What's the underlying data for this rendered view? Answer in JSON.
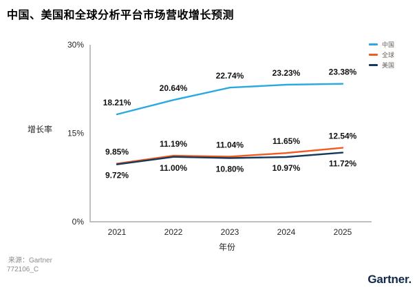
{
  "title": "中国、美国和全球分析平台市场营收增长预测",
  "chart_data": {
    "type": "line",
    "x": [
      "2021",
      "2022",
      "2023",
      "2024",
      "2025"
    ],
    "series": [
      {
        "name": "中国",
        "color": "#29A9E0",
        "values": [
          18.21,
          20.64,
          22.74,
          23.23,
          23.38
        ],
        "label_position": "above"
      },
      {
        "name": "全球",
        "color": "#F4591D",
        "values": [
          9.85,
          11.19,
          11.04,
          11.65,
          12.54
        ],
        "label_position": "above"
      },
      {
        "name": "美国",
        "color": "#15395B",
        "values": [
          9.72,
          11.0,
          10.8,
          10.97,
          11.72
        ],
        "label_position": "below"
      }
    ],
    "xlabel": "年份",
    "ylabel": "增长率",
    "ylim": [
      0,
      30
    ],
    "yticks": [
      {
        "value": 0,
        "label": "0%"
      },
      {
        "value": 15,
        "label": "15%"
      },
      {
        "value": 30,
        "label": "30%"
      }
    ],
    "value_suffix": "%",
    "legend_position": "top-right",
    "grid": false,
    "axis_color": "#bfbfbf",
    "tick_color": "#262626",
    "data_label_color": "#111111"
  },
  "footer": {
    "source": "来源：Gartner",
    "doc_id": "772106_C"
  },
  "branding": {
    "logo_text": "Gartner.",
    "logo_color": "#10284A"
  }
}
